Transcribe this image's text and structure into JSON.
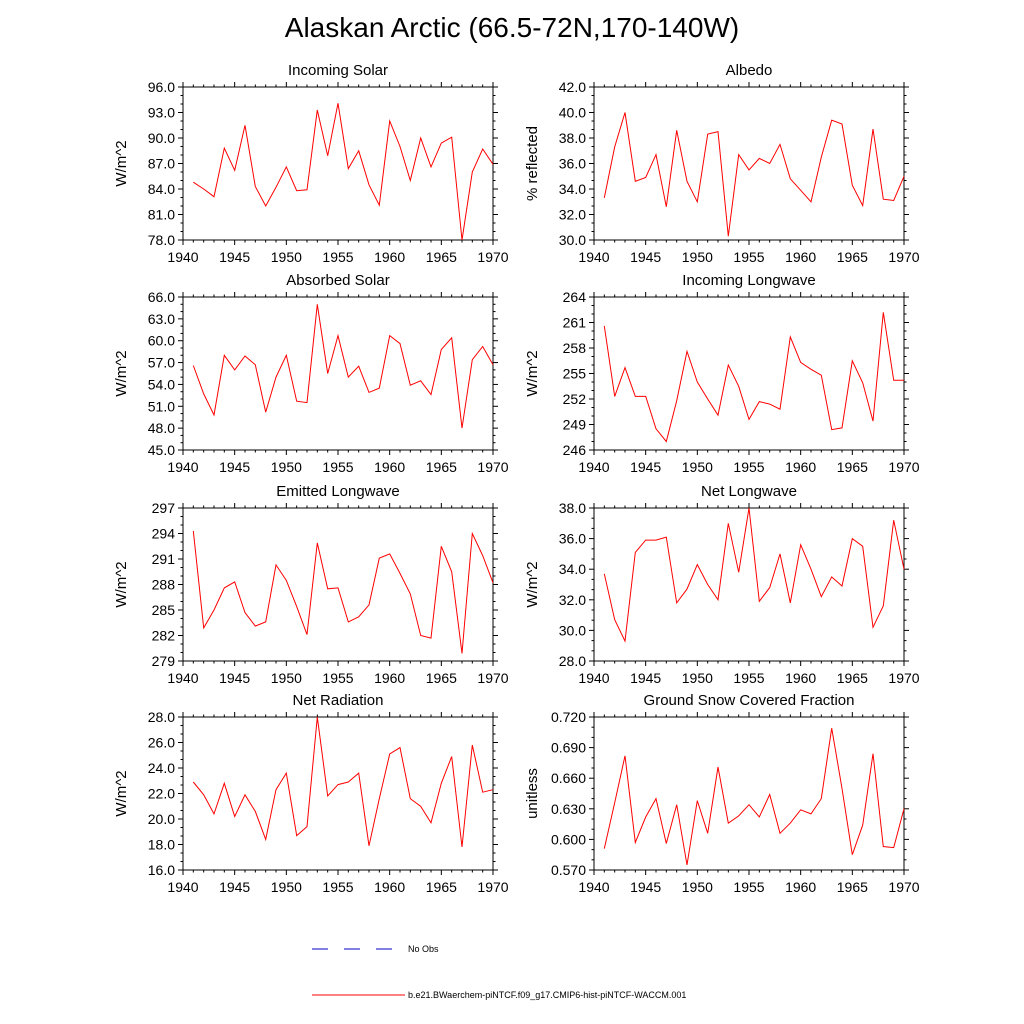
{
  "figure_title": "Alaskan Arctic (66.5-72N,170-140W)",
  "legend": {
    "entries": [
      {
        "label": "No Obs",
        "color": "#0000cc",
        "style": "dashed"
      },
      {
        "label": "b.e21.BWaerchem-piNTCF.f09_g17.CMIP6-hist-piNTCF-WACCM.001",
        "color": "#ff0000",
        "style": "solid"
      }
    ]
  },
  "chart_data": [
    {
      "type": "line",
      "title": "Incoming Solar",
      "ylabel": "W/m^2",
      "xlim": [
        1940,
        1970
      ],
      "ylim": [
        78.0,
        96.0
      ],
      "xticks": [
        1940,
        1945,
        1950,
        1955,
        1960,
        1965,
        1970
      ],
      "xtick_labels": [
        "1940",
        "1945",
        "1950",
        "1955",
        "1960",
        "1965",
        "1970"
      ],
      "yticks": [
        78.0,
        81.0,
        84.0,
        87.0,
        90.0,
        93.0,
        96.0
      ],
      "ytick_labels": [
        "78.0",
        "81.0",
        "84.0",
        "87.0",
        "90.0",
        "93.0",
        "96.0"
      ],
      "x": [
        1941,
        1942,
        1943,
        1944,
        1945,
        1946,
        1947,
        1948,
        1949,
        1950,
        1951,
        1952,
        1953,
        1954,
        1955,
        1956,
        1957,
        1958,
        1959,
        1960,
        1961,
        1962,
        1963,
        1964,
        1965,
        1966,
        1967,
        1968,
        1969,
        1970
      ],
      "series": [
        {
          "values": [
            84.8,
            84.0,
            83.1,
            88.8,
            86.2,
            91.5,
            84.3,
            82.0,
            84.2,
            86.6,
            83.8,
            83.9,
            93.3,
            87.9,
            94.1,
            86.4,
            88.5,
            84.5,
            82.1,
            92.0,
            89.0,
            85.0,
            90.0,
            86.6,
            89.4,
            90.1,
            78.0,
            86.0,
            88.7,
            86.9
          ],
          "color": "#ff0000"
        }
      ]
    },
    {
      "type": "line",
      "title": "Albedo",
      "ylabel": "% reflected",
      "xlim": [
        1940,
        1970
      ],
      "ylim": [
        30.0,
        42.0
      ],
      "xticks": [
        1940,
        1945,
        1950,
        1955,
        1960,
        1965,
        1970
      ],
      "xtick_labels": [
        "1940",
        "1945",
        "1950",
        "1955",
        "1960",
        "1965",
        "1970"
      ],
      "yticks": [
        30.0,
        32.0,
        34.0,
        36.0,
        38.0,
        40.0,
        42.0
      ],
      "ytick_labels": [
        "30.0",
        "32.0",
        "34.0",
        "36.0",
        "38.0",
        "40.0",
        "42.0"
      ],
      "x": [
        1941,
        1942,
        1943,
        1944,
        1945,
        1946,
        1947,
        1948,
        1949,
        1950,
        1951,
        1952,
        1953,
        1954,
        1955,
        1956,
        1957,
        1958,
        1959,
        1960,
        1961,
        1962,
        1963,
        1964,
        1965,
        1966,
        1967,
        1968,
        1969,
        1970
      ],
      "series": [
        {
          "values": [
            33.3,
            37.3,
            40.0,
            34.6,
            34.9,
            36.7,
            32.6,
            38.6,
            34.6,
            33.0,
            38.3,
            38.5,
            30.3,
            36.7,
            35.5,
            36.4,
            36.0,
            37.5,
            34.8,
            33.9,
            33.0,
            36.5,
            39.4,
            39.1,
            34.3,
            32.7,
            38.7,
            33.2,
            33.1,
            35.0
          ],
          "color": "#ff0000"
        }
      ]
    },
    {
      "type": "line",
      "title": "Absorbed Solar",
      "ylabel": "W/m^2",
      "xlim": [
        1940,
        1970
      ],
      "ylim": [
        45.0,
        66.0
      ],
      "xticks": [
        1940,
        1945,
        1950,
        1955,
        1960,
        1965,
        1970
      ],
      "xtick_labels": [
        "1940",
        "1945",
        "1950",
        "1955",
        "1960",
        "1965",
        "1970"
      ],
      "yticks": [
        45.0,
        48.0,
        51.0,
        54.0,
        57.0,
        60.0,
        63.0,
        66.0
      ],
      "ytick_labels": [
        "45.0",
        "48.0",
        "51.0",
        "54.0",
        "57.0",
        "60.0",
        "63.0",
        "66.0"
      ],
      "x": [
        1941,
        1942,
        1943,
        1944,
        1945,
        1946,
        1947,
        1948,
        1949,
        1950,
        1951,
        1952,
        1953,
        1954,
        1955,
        1956,
        1957,
        1958,
        1959,
        1960,
        1961,
        1962,
        1963,
        1964,
        1965,
        1966,
        1967,
        1968,
        1969,
        1970
      ],
      "series": [
        {
          "values": [
            56.6,
            52.7,
            49.8,
            58.0,
            56.0,
            57.9,
            56.7,
            50.2,
            55.0,
            58.0,
            51.7,
            51.5,
            65.0,
            55.5,
            60.7,
            55.0,
            56.5,
            52.9,
            53.5,
            60.7,
            59.6,
            53.9,
            54.5,
            52.6,
            58.8,
            60.4,
            48.0,
            57.4,
            59.2,
            56.7
          ],
          "color": "#ff0000"
        }
      ]
    },
    {
      "type": "line",
      "title": "Incoming Longwave",
      "ylabel": "W/m^2",
      "xlim": [
        1940,
        1970
      ],
      "ylim": [
        246,
        264
      ],
      "xticks": [
        1940,
        1945,
        1950,
        1955,
        1960,
        1965,
        1970
      ],
      "xtick_labels": [
        "1940",
        "1945",
        "1950",
        "1955",
        "1960",
        "1965",
        "1970"
      ],
      "yticks": [
        246,
        249,
        252,
        255,
        258,
        261,
        264
      ],
      "ytick_labels": [
        "246",
        "249",
        "252",
        "255",
        "258",
        "261",
        "264"
      ],
      "x": [
        1941,
        1942,
        1943,
        1944,
        1945,
        1946,
        1947,
        1948,
        1949,
        1950,
        1951,
        1952,
        1953,
        1954,
        1955,
        1956,
        1957,
        1958,
        1959,
        1960,
        1961,
        1962,
        1963,
        1964,
        1965,
        1966,
        1967,
        1968,
        1969,
        1970
      ],
      "series": [
        {
          "values": [
            260.6,
            252.3,
            255.7,
            252.3,
            252.3,
            248.5,
            247.0,
            251.8,
            257.6,
            254.0,
            252.0,
            250.1,
            256.0,
            253.5,
            249.6,
            251.7,
            251.4,
            250.8,
            259.3,
            256.3,
            255.5,
            254.8,
            248.4,
            248.6,
            256.5,
            253.9,
            249.4,
            262.2,
            254.2,
            254.2
          ],
          "color": "#ff0000"
        }
      ]
    },
    {
      "type": "line",
      "title": "Emitted Longwave",
      "ylabel": "W/m^2",
      "xlim": [
        1940,
        1970
      ],
      "ylim": [
        279,
        297
      ],
      "xticks": [
        1940,
        1945,
        1950,
        1955,
        1960,
        1965,
        1970
      ],
      "xtick_labels": [
        "1940",
        "1945",
        "1950",
        "1955",
        "1960",
        "1965",
        "1970"
      ],
      "yticks": [
        279,
        282,
        285,
        288,
        291,
        294,
        297
      ],
      "ytick_labels": [
        "279",
        "282",
        "285",
        "288",
        "291",
        "294",
        "297"
      ],
      "x": [
        1941,
        1942,
        1943,
        1944,
        1945,
        1946,
        1947,
        1948,
        1949,
        1950,
        1951,
        1952,
        1953,
        1954,
        1955,
        1956,
        1957,
        1958,
        1959,
        1960,
        1961,
        1962,
        1963,
        1964,
        1965,
        1966,
        1967,
        1968,
        1969,
        1970
      ],
      "series": [
        {
          "values": [
            294.3,
            282.9,
            285.0,
            287.6,
            288.3,
            284.7,
            283.1,
            283.6,
            290.3,
            288.5,
            285.4,
            282.1,
            292.9,
            287.5,
            287.6,
            283.6,
            284.2,
            285.6,
            291.1,
            291.6,
            289.3,
            286.9,
            282.0,
            281.7,
            292.5,
            289.5,
            279.9,
            294.0,
            291.4,
            288.2
          ],
          "color": "#ff0000"
        }
      ]
    },
    {
      "type": "line",
      "title": "Net Longwave",
      "ylabel": "W/m^2",
      "xlim": [
        1940,
        1970
      ],
      "ylim": [
        28.0,
        38.0
      ],
      "xticks": [
        1940,
        1945,
        1950,
        1955,
        1960,
        1965,
        1970
      ],
      "xtick_labels": [
        "1940",
        "1945",
        "1950",
        "1955",
        "1960",
        "1965",
        "1970"
      ],
      "yticks": [
        28.0,
        30.0,
        32.0,
        34.0,
        36.0,
        38.0
      ],
      "ytick_labels": [
        "28.0",
        "30.0",
        "32.0",
        "34.0",
        "36.0",
        "38.0"
      ],
      "x": [
        1941,
        1942,
        1943,
        1944,
        1945,
        1946,
        1947,
        1948,
        1949,
        1950,
        1951,
        1952,
        1953,
        1954,
        1955,
        1956,
        1957,
        1958,
        1959,
        1960,
        1961,
        1962,
        1963,
        1964,
        1965,
        1966,
        1967,
        1968,
        1969,
        1970
      ],
      "series": [
        {
          "values": [
            33.7,
            30.7,
            29.3,
            35.1,
            35.9,
            35.9,
            36.1,
            31.8,
            32.7,
            34.3,
            33.0,
            32.0,
            37.0,
            33.8,
            38.0,
            31.9,
            32.8,
            35.0,
            31.8,
            35.6,
            34.0,
            32.2,
            33.5,
            32.9,
            36.0,
            35.5,
            30.2,
            31.6,
            37.2,
            34.0
          ],
          "color": "#ff0000"
        }
      ]
    },
    {
      "type": "line",
      "title": "Net Radiation",
      "ylabel": "W/m^2",
      "xlim": [
        1940,
        1970
      ],
      "ylim": [
        16.0,
        28.0
      ],
      "xticks": [
        1940,
        1945,
        1950,
        1955,
        1960,
        1965,
        1970
      ],
      "xtick_labels": [
        "1940",
        "1945",
        "1950",
        "1955",
        "1960",
        "1965",
        "1970"
      ],
      "yticks": [
        16.0,
        18.0,
        20.0,
        22.0,
        24.0,
        26.0,
        28.0
      ],
      "ytick_labels": [
        "16.0",
        "18.0",
        "20.0",
        "22.0",
        "24.0",
        "26.0",
        "28.0"
      ],
      "x": [
        1941,
        1942,
        1943,
        1944,
        1945,
        1946,
        1947,
        1948,
        1949,
        1950,
        1951,
        1952,
        1953,
        1954,
        1955,
        1956,
        1957,
        1958,
        1959,
        1960,
        1961,
        1962,
        1963,
        1964,
        1965,
        1966,
        1967,
        1968,
        1969,
        1970
      ],
      "series": [
        {
          "values": [
            22.9,
            21.9,
            20.4,
            22.8,
            20.2,
            21.9,
            20.6,
            18.4,
            22.3,
            23.6,
            18.7,
            19.4,
            28.0,
            21.8,
            22.7,
            22.9,
            23.6,
            17.9,
            21.6,
            25.1,
            25.6,
            21.6,
            21.0,
            19.7,
            22.8,
            24.9,
            17.8,
            25.8,
            22.1,
            22.3
          ],
          "color": "#ff0000"
        }
      ]
    },
    {
      "type": "line",
      "title": "Ground Snow Covered Fraction",
      "ylabel": "unitless",
      "xlim": [
        1940,
        1970
      ],
      "ylim": [
        0.57,
        0.72
      ],
      "xticks": [
        1940,
        1945,
        1950,
        1955,
        1960,
        1965,
        1970
      ],
      "xtick_labels": [
        "1940",
        "1945",
        "1950",
        "1955",
        "1960",
        "1965",
        "1970"
      ],
      "yticks": [
        0.57,
        0.6,
        0.63,
        0.66,
        0.69,
        0.72
      ],
      "ytick_labels": [
        "0.570",
        "0.600",
        "0.630",
        "0.660",
        "0.690",
        "0.720"
      ],
      "x": [
        1941,
        1942,
        1943,
        1944,
        1945,
        1946,
        1947,
        1948,
        1949,
        1950,
        1951,
        1952,
        1953,
        1954,
        1955,
        1956,
        1957,
        1958,
        1959,
        1960,
        1961,
        1962,
        1963,
        1964,
        1965,
        1966,
        1967,
        1968,
        1969,
        1970
      ],
      "series": [
        {
          "values": [
            0.591,
            0.636,
            0.682,
            0.597,
            0.622,
            0.64,
            0.596,
            0.634,
            0.575,
            0.638,
            0.606,
            0.671,
            0.616,
            0.623,
            0.634,
            0.622,
            0.644,
            0.606,
            0.616,
            0.629,
            0.625,
            0.64,
            0.709,
            0.65,
            0.585,
            0.614,
            0.684,
            0.593,
            0.592,
            0.63
          ],
          "color": "#ff0000"
        }
      ]
    }
  ]
}
